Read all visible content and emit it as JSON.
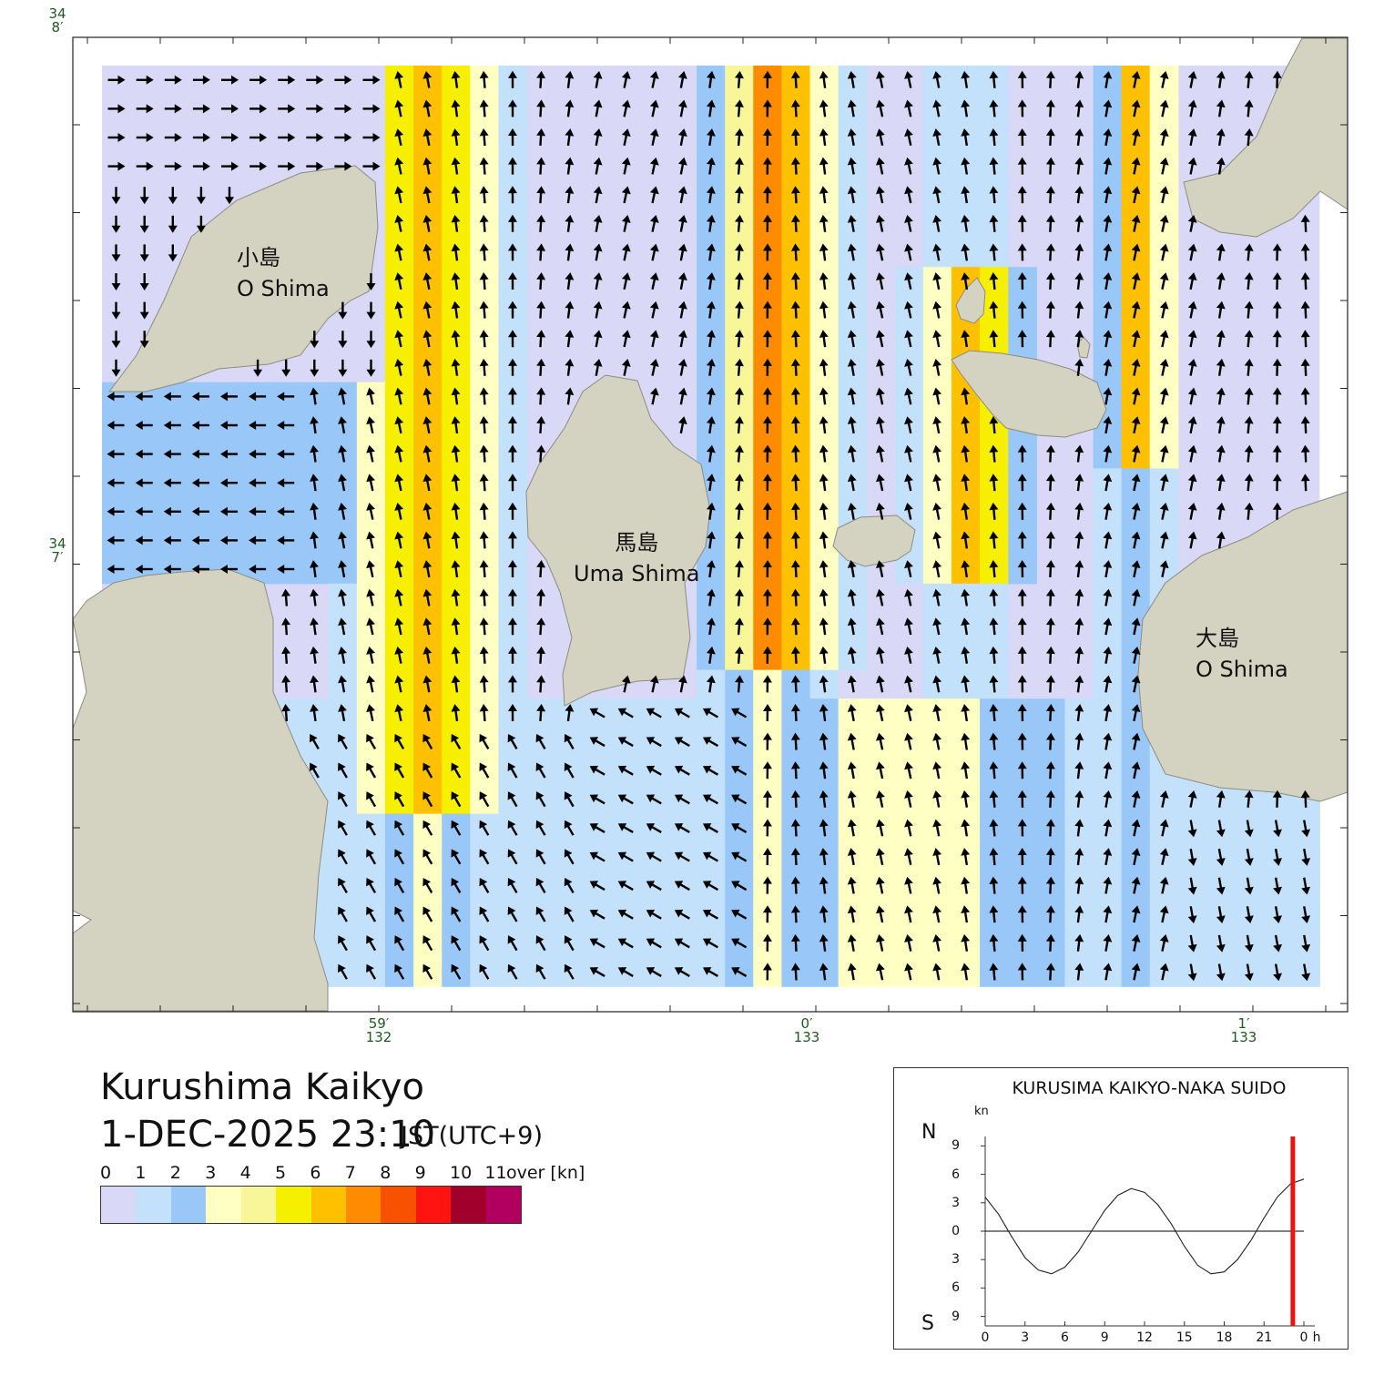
{
  "map": {
    "title": "Kurushima Kaikyo",
    "datetime": "1-DEC-2025 23:10",
    "timezone": "JST(UTC+9)",
    "lat_labels": [
      {
        "deg": "34",
        "min": "8",
        "lat": 34.1333
      },
      {
        "deg": "34",
        "min": "7",
        "lat": 34.1167
      }
    ],
    "lon_labels": [
      {
        "min": "59",
        "deg": "132",
        "lon": 132.9833
      },
      {
        "min": "0",
        "deg": "133",
        "lon": 133.0
      },
      {
        "min": "1",
        "deg": "133",
        "lon": 133.0167
      }
    ],
    "places": [
      {
        "jp": "小島",
        "en": "O Shima"
      },
      {
        "jp": "馬島",
        "en": "Uma Shima"
      },
      {
        "jp": "大島",
        "en": "O Shima"
      }
    ],
    "colors": {
      "land": "#d4d3c2",
      "coast": "#8c8c80",
      "water": "#d9d9f7",
      "arrow": "#000000"
    }
  },
  "legend": {
    "labels": [
      "0",
      "1",
      "2",
      "3",
      "4",
      "5",
      "6",
      "7",
      "8",
      "9",
      "10",
      "11",
      "over [kn]"
    ],
    "colors": [
      "#d9d9f7",
      "#c4e1fc",
      "#99c8f8",
      "#ffffc4",
      "#f7f79a",
      "#f7ef00",
      "#ffc000",
      "#fe8b00",
      "#f85200",
      "#ff1410",
      "#a0002b",
      "#b1005f"
    ]
  },
  "chart_data": {
    "type": "line",
    "title": "KURUSIMA KAIKYO-NAKA SUIDO",
    "ylabel": "kn",
    "y_top_label": "N",
    "y_bottom_label": "S",
    "x_unit": "h",
    "x_ticks": [
      "0",
      "3",
      "6",
      "9",
      "12",
      "15",
      "18",
      "21",
      "0"
    ],
    "y_ticks": [
      "9",
      "6",
      "3",
      "0",
      "3",
      "6",
      "9"
    ],
    "xlim": [
      0,
      24
    ],
    "ylim": [
      -10,
      10
    ],
    "current_time_hours": 23.17,
    "series": [
      {
        "x": [
          0,
          1,
          2,
          3,
          4,
          5,
          6,
          7,
          8,
          9,
          10,
          11,
          12,
          13,
          14,
          15,
          16,
          17,
          18,
          19,
          20,
          21,
          22,
          23,
          24
        ],
        "values": [
          3.6,
          1.8,
          -0.6,
          -2.8,
          -4.1,
          -4.5,
          -3.8,
          -2.2,
          0.0,
          2.2,
          3.8,
          4.5,
          4.1,
          2.8,
          0.8,
          -1.6,
          -3.6,
          -4.5,
          -4.3,
          -3.0,
          -1.0,
          1.4,
          3.6,
          5.0,
          5.5
        ]
      }
    ]
  }
}
